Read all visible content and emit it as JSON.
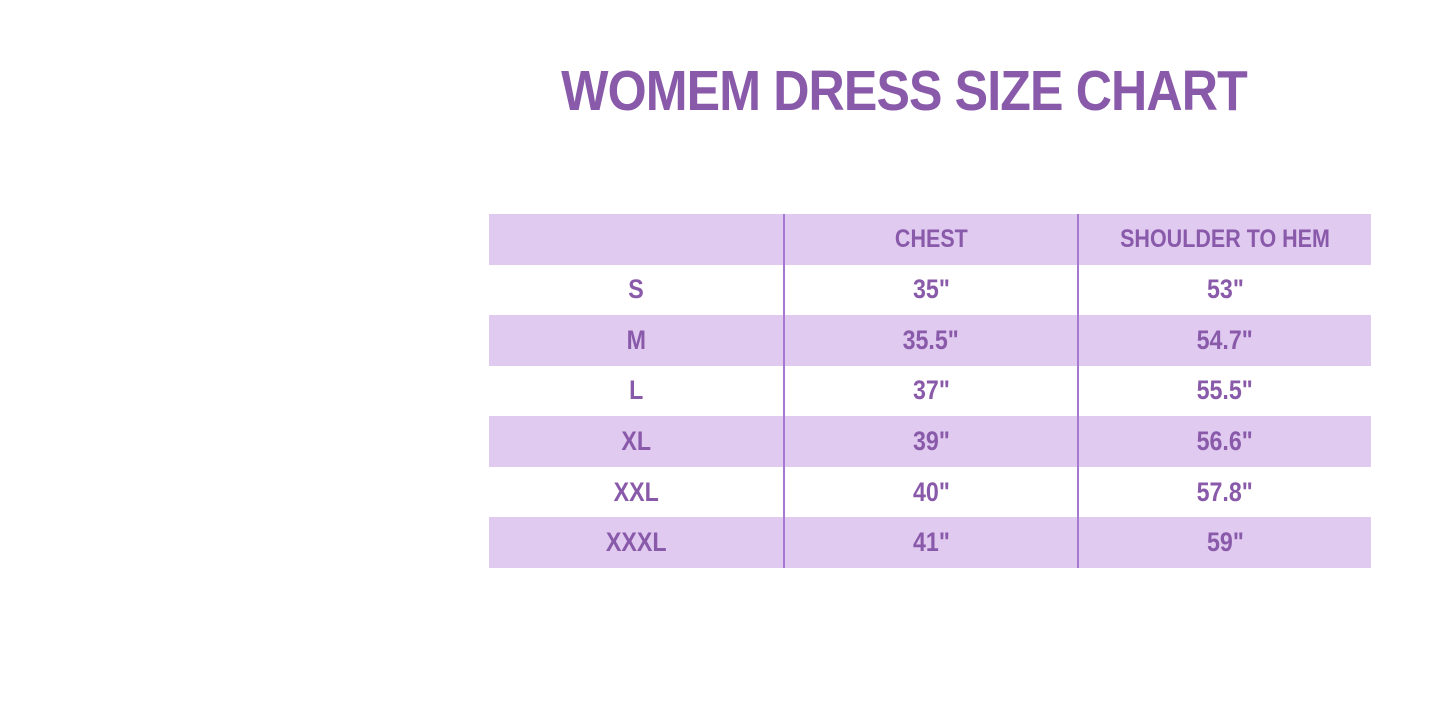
{
  "title": {
    "text": "WOMEM DRESS SIZE CHART"
  },
  "colors": {
    "title_text": "#8A5AAA",
    "cell_text": "#8A5AAA",
    "stripe_lavender": "#E0CAF0",
    "row_white": "#FFFFFF",
    "column_divider": "#A678D2",
    "page_background": "#FFFFFF"
  },
  "chart_data": {
    "type": "table",
    "title": "WOMEM DRESS SIZE CHART",
    "columns": [
      "",
      "CHEST",
      "SHOULDER TO HEM"
    ],
    "rows": [
      [
        "S",
        "35\"",
        "53\""
      ],
      [
        "M",
        "35.5\"",
        "54.7\""
      ],
      [
        "L",
        "37\"",
        "55.5\""
      ],
      [
        "XL",
        "39\"",
        "56.6\""
      ],
      [
        "XXL",
        "40\"",
        "57.8\""
      ],
      [
        "XXXL",
        "41\"",
        "59\""
      ]
    ],
    "layout": {
      "striped": true,
      "stripe_color": "#E0CAF0",
      "header_background": "#E0CAF0",
      "column_dividers": true,
      "horizontal_gridlines": false,
      "text_align": "center"
    }
  }
}
